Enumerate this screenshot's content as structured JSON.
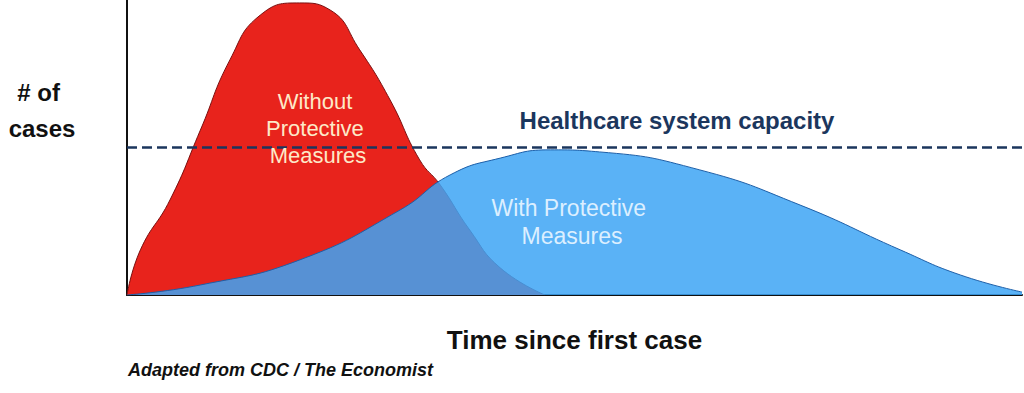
{
  "chart_data": {
    "type": "area",
    "x_label": "Time since first case",
    "y_label": "# of cases",
    "source": "Adapted from CDC / The Economist",
    "xlim": [
      0,
      100
    ],
    "ylim": [
      0,
      100
    ],
    "tick_labels": false,
    "grid": false,
    "capacity_line": {
      "label": "Healthcare system capacity",
      "value": 50
    },
    "series": [
      {
        "name": "Without Protective Measures",
        "color": "#e8231c",
        "x": [
          0,
          1.5,
          4.8,
          8.2,
          11.5,
          14.9,
          19.3,
          22.7,
          26.0,
          29.4,
          32.7,
          35.0,
          38.3,
          41.7,
          46.7
        ],
        "values": [
          0,
          15.3,
          32.2,
          55.9,
          79.7,
          94.9,
          99,
          96.6,
          83.1,
          66.1,
          45.8,
          37.3,
          22.0,
          9.2,
          0
        ]
      },
      {
        "name": "With Protective Measures",
        "color": "#3da5f4",
        "x": [
          0,
          8.2,
          19.3,
          30.5,
          36.1,
          41.7,
          47.3,
          52.8,
          64.0,
          75.2,
          86.4,
          93.1,
          100
        ],
        "values": [
          0,
          3.4,
          11.9,
          28.8,
          40.7,
          46.4,
          49.2,
          48.5,
          42.4,
          30.5,
          15.3,
          6.8,
          1
        ]
      }
    ]
  }
}
